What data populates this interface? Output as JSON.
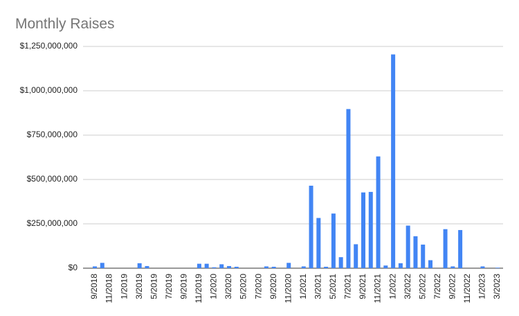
{
  "chart_data": {
    "type": "bar",
    "title": "Monthly Raises",
    "categories": [
      "9/2018",
      null,
      "11/2018",
      null,
      "1/2019",
      null,
      "3/2019",
      null,
      "5/2019",
      null,
      "7/2019",
      null,
      "9/2019",
      null,
      "11/2019",
      null,
      "1/2020",
      null,
      "3/2020",
      null,
      "5/2020",
      null,
      "7/2020",
      null,
      "9/2020",
      null,
      "11/2020",
      null,
      "1/2021",
      null,
      "3/2021",
      null,
      "5/2021",
      null,
      "7/2021",
      null,
      "9/2021",
      null,
      "11/2021",
      null,
      "1/2022",
      null,
      "3/2022",
      null,
      "5/2022",
      null,
      "7/2022",
      null,
      "9/2022",
      null,
      "11/2022",
      null,
      "1/2023",
      null,
      "3/2023"
    ],
    "values": [
      10000000,
      30000000,
      0,
      0,
      0,
      0,
      28000000,
      12000000,
      0,
      0,
      0,
      0,
      0,
      0,
      25000000,
      25000000,
      5000000,
      22000000,
      12000000,
      8000000,
      0,
      0,
      0,
      10000000,
      8000000,
      0,
      30000000,
      0,
      10000000,
      465000000,
      283000000,
      8000000,
      308000000,
      62000000,
      897000000,
      135000000,
      427000000,
      430000000,
      630000000,
      15000000,
      1205000000,
      28000000,
      240000000,
      180000000,
      133000000,
      45000000,
      0,
      220000000,
      10000000,
      215000000,
      0,
      0,
      10000000,
      0,
      3000000
    ],
    "color": "#4285f4",
    "ylim": [
      0,
      1250000000
    ],
    "yticks": [
      {
        "value": 0,
        "label": "$0"
      },
      {
        "value": 250000000,
        "label": "$250,000,000"
      },
      {
        "value": 500000000,
        "label": "$500,000,000"
      },
      {
        "value": 750000000,
        "label": "$750,000,000"
      },
      {
        "value": 1000000000,
        "label": "$1,000,000,000"
      },
      {
        "value": 1250000000,
        "label": "$1,250,000,000"
      }
    ],
    "grid": true
  }
}
